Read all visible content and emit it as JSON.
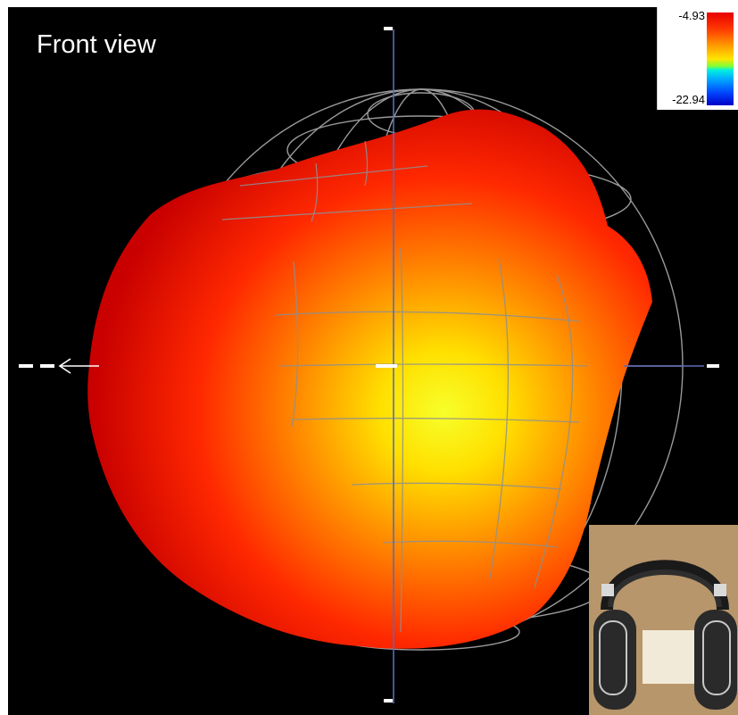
{
  "view": {
    "title": "Front view"
  },
  "legend": {
    "max_label": "-4.93",
    "min_label": "-22.94"
  },
  "colors": {
    "background": "#000000",
    "wireframe": "#9a9a9a",
    "axis": "#5a6ab8",
    "pattern_hot": "#e00000",
    "pattern_warm": "#ffe800"
  },
  "icons": {
    "axis_arrow": "left-arrow-icon",
    "headphones": "headphones-photo"
  }
}
